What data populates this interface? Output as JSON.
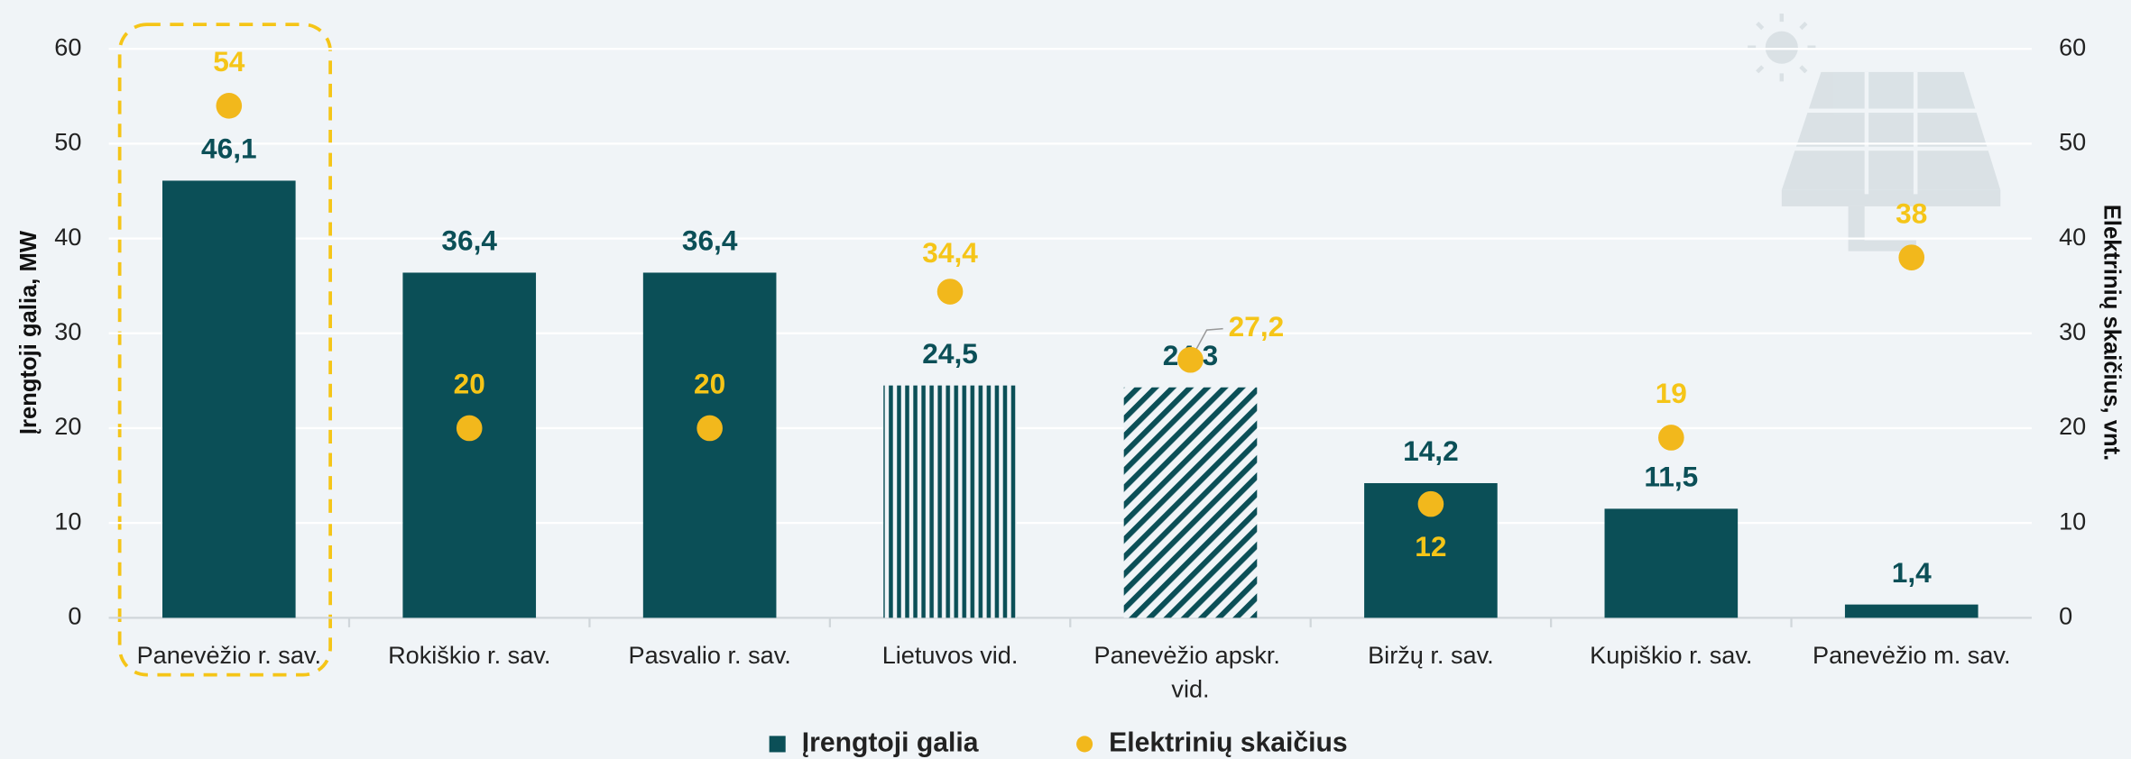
{
  "chart_data": {
    "type": "bar",
    "categories": [
      "Panevėžio r. sav.",
      "Rokiškio r. sav.",
      "Pasvalio r. sav.",
      "Lietuvos vid.",
      "Panevėžio apskr. vid.",
      "Biržų r. sav.",
      "Kupiškio r. sav.",
      "Panevėžio m. sav."
    ],
    "series": [
      {
        "name": "Įrengtoji galia",
        "type": "bar",
        "color": "#0b4f57",
        "values": [
          46.1,
          36.4,
          36.4,
          24.5,
          24.3,
          14.2,
          11.5,
          1.4
        ],
        "value_labels": [
          "46,1",
          "36,4",
          "36,4",
          "24,5",
          "24,3",
          "14,2",
          "11,5",
          "1,4"
        ]
      },
      {
        "name": "Elektrinių skaičius",
        "type": "scatter",
        "axis": "y2",
        "color": "#f2b81c",
        "values": [
          54,
          20,
          20,
          34.4,
          27.2,
          12,
          19,
          38
        ],
        "value_labels": [
          "54",
          "20",
          "20",
          "34,4",
          "27,2",
          "12",
          "19",
          "38"
        ]
      }
    ],
    "ylabel": "Įrengtoji galia, MW",
    "y2label": "Elektrinių skaičius, vnt.",
    "ylim": [
      0,
      60
    ],
    "yticks": [
      0,
      10,
      20,
      30,
      40,
      50,
      60
    ],
    "y2lim": [
      0,
      60
    ],
    "y2ticks": [
      0,
      10,
      20,
      30,
      40,
      50,
      60
    ],
    "grid": true,
    "legend": "bottom"
  }
}
